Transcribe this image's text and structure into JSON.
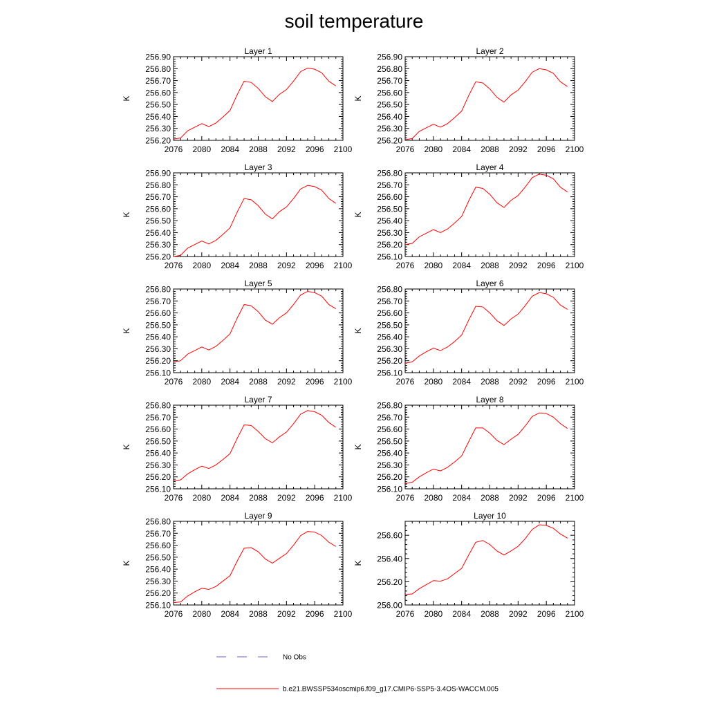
{
  "figure": {
    "title": "soil temperature",
    "legend": [
      {
        "label": "No Obs",
        "color": "#6666cc",
        "dash": true
      },
      {
        "label": "b.e21.BWSSP534oscmip6.f09_g17.CMIP6-SSP5-3.4OS-WACCM.005",
        "color": "#ff0000",
        "dash": false
      }
    ]
  },
  "chart_data": [
    {
      "type": "line",
      "title": "Layer 1",
      "xlabel": "",
      "ylabel": "K",
      "xlim": [
        2076,
        2100
      ],
      "ylim": [
        256.2,
        256.9
      ],
      "xticks": [
        "2076",
        "2080",
        "2084",
        "2088",
        "2092",
        "2096",
        "2100"
      ],
      "yticks": [
        "256.20",
        "256.30",
        "256.40",
        "256.50",
        "256.60",
        "256.70",
        "256.80",
        "256.90"
      ],
      "x": [
        2076,
        2077,
        2078,
        2079,
        2080,
        2081,
        2082,
        2083,
        2084,
        2085,
        2086,
        2087,
        2088,
        2089,
        2090,
        2091,
        2092,
        2093,
        2094,
        2095,
        2096,
        2097,
        2098,
        2099
      ],
      "series": [
        {
          "name": "b.e21.BWSSP534oscmip6.f09_g17.CMIP6-SSP5-3.4OS-WACCM.005",
          "values": [
            256.21,
            256.22,
            256.28,
            256.31,
            256.34,
            256.315,
            256.345,
            256.395,
            256.45,
            256.58,
            256.695,
            256.685,
            256.635,
            256.565,
            256.525,
            256.585,
            256.625,
            256.695,
            256.775,
            256.805,
            256.795,
            256.765,
            256.695,
            256.655
          ]
        }
      ]
    },
    {
      "type": "line",
      "title": "Layer 2",
      "xlabel": "",
      "ylabel": "K",
      "xlim": [
        2076,
        2100
      ],
      "ylim": [
        256.2,
        256.9
      ],
      "xticks": [
        "2076",
        "2080",
        "2084",
        "2088",
        "2092",
        "2096",
        "2100"
      ],
      "yticks": [
        "256.20",
        "256.30",
        "256.40",
        "256.50",
        "256.60",
        "256.70",
        "256.80",
        "256.90"
      ],
      "x": [
        2076,
        2077,
        2078,
        2079,
        2080,
        2081,
        2082,
        2083,
        2084,
        2085,
        2086,
        2087,
        2088,
        2089,
        2090,
        2091,
        2092,
        2093,
        2094,
        2095,
        2096,
        2097,
        2098,
        2099
      ],
      "series": [
        {
          "name": "b.e21.BWSSP534oscmip6.f09_g17.CMIP6-SSP5-3.4OS-WACCM.005",
          "values": [
            256.205,
            256.215,
            256.275,
            256.305,
            256.335,
            256.31,
            256.34,
            256.39,
            256.445,
            256.575,
            256.69,
            256.68,
            256.63,
            256.56,
            256.52,
            256.58,
            256.62,
            256.69,
            256.77,
            256.8,
            256.79,
            256.76,
            256.69,
            256.65
          ]
        }
      ]
    },
    {
      "type": "line",
      "title": "Layer 3",
      "xlabel": "",
      "ylabel": "K",
      "xlim": [
        2076,
        2100
      ],
      "ylim": [
        256.2,
        256.9
      ],
      "xticks": [
        "2076",
        "2080",
        "2084",
        "2088",
        "2092",
        "2096",
        "2100"
      ],
      "yticks": [
        "256.20",
        "256.30",
        "256.40",
        "256.50",
        "256.60",
        "256.70",
        "256.80",
        "256.90"
      ],
      "x": [
        2076,
        2077,
        2078,
        2079,
        2080,
        2081,
        2082,
        2083,
        2084,
        2085,
        2086,
        2087,
        2088,
        2089,
        2090,
        2091,
        2092,
        2093,
        2094,
        2095,
        2096,
        2097,
        2098,
        2099
      ],
      "series": [
        {
          "name": "b.e21.BWSSP534oscmip6.f09_g17.CMIP6-SSP5-3.4OS-WACCM.005",
          "values": [
            256.2,
            256.21,
            256.27,
            256.3,
            256.33,
            256.305,
            256.335,
            256.385,
            256.44,
            256.57,
            256.685,
            256.675,
            256.625,
            256.555,
            256.515,
            256.575,
            256.615,
            256.685,
            256.765,
            256.795,
            256.785,
            256.755,
            256.685,
            256.645
          ]
        }
      ]
    },
    {
      "type": "line",
      "title": "Layer 4",
      "xlabel": "",
      "ylabel": "K",
      "xlim": [
        2076,
        2100
      ],
      "ylim": [
        256.1,
        256.8
      ],
      "xticks": [
        "2076",
        "2080",
        "2084",
        "2088",
        "2092",
        "2096",
        "2100"
      ],
      "yticks": [
        "256.10",
        "256.20",
        "256.30",
        "256.40",
        "256.50",
        "256.60",
        "256.70",
        "256.80"
      ],
      "x": [
        2076,
        2077,
        2078,
        2079,
        2080,
        2081,
        2082,
        2083,
        2084,
        2085,
        2086,
        2087,
        2088,
        2089,
        2090,
        2091,
        2092,
        2093,
        2094,
        2095,
        2096,
        2097,
        2098,
        2099
      ],
      "series": [
        {
          "name": "b.e21.BWSSP534oscmip6.f09_g17.CMIP6-SSP5-3.4OS-WACCM.005",
          "values": [
            256.2,
            256.21,
            256.265,
            256.295,
            256.325,
            256.3,
            256.33,
            256.38,
            256.435,
            256.565,
            256.68,
            256.67,
            256.62,
            256.55,
            256.51,
            256.57,
            256.61,
            256.68,
            256.76,
            256.79,
            256.78,
            256.75,
            256.68,
            256.64
          ]
        }
      ]
    },
    {
      "type": "line",
      "title": "Layer 5",
      "xlabel": "",
      "ylabel": "K",
      "xlim": [
        2076,
        2100
      ],
      "ylim": [
        256.1,
        256.8
      ],
      "xticks": [
        "2076",
        "2080",
        "2084",
        "2088",
        "2092",
        "2096",
        "2100"
      ],
      "yticks": [
        "256.10",
        "256.20",
        "256.30",
        "256.40",
        "256.50",
        "256.60",
        "256.70",
        "256.80"
      ],
      "x": [
        2076,
        2077,
        2078,
        2079,
        2080,
        2081,
        2082,
        2083,
        2084,
        2085,
        2086,
        2087,
        2088,
        2089,
        2090,
        2091,
        2092,
        2093,
        2094,
        2095,
        2096,
        2097,
        2098,
        2099
      ],
      "series": [
        {
          "name": "b.e21.BWSSP534oscmip6.f09_g17.CMIP6-SSP5-3.4OS-WACCM.005",
          "values": [
            256.19,
            256.2,
            256.255,
            256.285,
            256.315,
            256.29,
            256.32,
            256.37,
            256.425,
            256.555,
            256.67,
            256.66,
            256.61,
            256.54,
            256.505,
            256.56,
            256.6,
            256.67,
            256.75,
            256.78,
            256.77,
            256.74,
            256.67,
            256.635
          ]
        }
      ]
    },
    {
      "type": "line",
      "title": "Layer 6",
      "xlabel": "",
      "ylabel": "K",
      "xlim": [
        2076,
        2100
      ],
      "ylim": [
        256.1,
        256.8
      ],
      "xticks": [
        "2076",
        "2080",
        "2084",
        "2088",
        "2092",
        "2096",
        "2100"
      ],
      "yticks": [
        "256.10",
        "256.20",
        "256.30",
        "256.40",
        "256.50",
        "256.60",
        "256.70",
        "256.80"
      ],
      "x": [
        2076,
        2077,
        2078,
        2079,
        2080,
        2081,
        2082,
        2083,
        2084,
        2085,
        2086,
        2087,
        2088,
        2089,
        2090,
        2091,
        2092,
        2093,
        2094,
        2095,
        2096,
        2097,
        2098,
        2099
      ],
      "series": [
        {
          "name": "b.e21.BWSSP534oscmip6.f09_g17.CMIP6-SSP5-3.4OS-WACCM.005",
          "values": [
            256.18,
            256.19,
            256.24,
            256.275,
            256.305,
            256.285,
            256.315,
            256.36,
            256.415,
            256.54,
            256.655,
            256.65,
            256.6,
            256.535,
            256.495,
            256.55,
            256.59,
            256.66,
            256.74,
            256.77,
            256.76,
            256.73,
            256.665,
            256.63
          ]
        }
      ]
    },
    {
      "type": "line",
      "title": "Layer 7",
      "xlabel": "",
      "ylabel": "K",
      "xlim": [
        2076,
        2100
      ],
      "ylim": [
        256.1,
        256.8
      ],
      "xticks": [
        "2076",
        "2080",
        "2084",
        "2088",
        "2092",
        "2096",
        "2100"
      ],
      "yticks": [
        "256.10",
        "256.20",
        "256.30",
        "256.40",
        "256.50",
        "256.60",
        "256.70",
        "256.80"
      ],
      "x": [
        2076,
        2077,
        2078,
        2079,
        2080,
        2081,
        2082,
        2083,
        2084,
        2085,
        2086,
        2087,
        2088,
        2089,
        2090,
        2091,
        2092,
        2093,
        2094,
        2095,
        2096,
        2097,
        2098,
        2099
      ],
      "series": [
        {
          "name": "b.e21.BWSSP534oscmip6.f09_g17.CMIP6-SSP5-3.4OS-WACCM.005",
          "values": [
            256.165,
            256.175,
            256.225,
            256.26,
            256.29,
            256.27,
            256.3,
            256.345,
            256.395,
            256.52,
            256.635,
            256.63,
            256.58,
            256.52,
            256.485,
            256.535,
            256.575,
            256.645,
            256.725,
            256.755,
            256.745,
            256.715,
            256.655,
            256.615
          ]
        }
      ]
    },
    {
      "type": "line",
      "title": "Layer 8",
      "xlabel": "",
      "ylabel": "K",
      "xlim": [
        2076,
        2100
      ],
      "ylim": [
        256.1,
        256.8
      ],
      "xticks": [
        "2076",
        "2080",
        "2084",
        "2088",
        "2092",
        "2096",
        "2100"
      ],
      "yticks": [
        "256.10",
        "256.20",
        "256.30",
        "256.40",
        "256.50",
        "256.60",
        "256.70",
        "256.80"
      ],
      "x": [
        2076,
        2077,
        2078,
        2079,
        2080,
        2081,
        2082,
        2083,
        2084,
        2085,
        2086,
        2087,
        2088,
        2089,
        2090,
        2091,
        2092,
        2093,
        2094,
        2095,
        2096,
        2097,
        2098,
        2099
      ],
      "series": [
        {
          "name": "b.e21.BWSSP534oscmip6.f09_g17.CMIP6-SSP5-3.4OS-WACCM.005",
          "values": [
            256.145,
            256.155,
            256.2,
            256.235,
            256.265,
            256.25,
            256.28,
            256.325,
            256.375,
            256.495,
            256.61,
            256.61,
            256.565,
            256.505,
            256.47,
            256.515,
            256.555,
            256.625,
            256.705,
            256.735,
            256.73,
            256.7,
            256.645,
            256.605
          ]
        }
      ]
    },
    {
      "type": "line",
      "title": "Layer 9",
      "xlabel": "",
      "ylabel": "K",
      "xlim": [
        2076,
        2100
      ],
      "ylim": [
        256.1,
        256.8
      ],
      "xticks": [
        "2076",
        "2080",
        "2084",
        "2088",
        "2092",
        "2096",
        "2100"
      ],
      "yticks": [
        "256.10",
        "256.20",
        "256.30",
        "256.40",
        "256.50",
        "256.60",
        "256.70",
        "256.80"
      ],
      "x": [
        2076,
        2077,
        2078,
        2079,
        2080,
        2081,
        2082,
        2083,
        2084,
        2085,
        2086,
        2087,
        2088,
        2089,
        2090,
        2091,
        2092,
        2093,
        2094,
        2095,
        2096,
        2097,
        2098,
        2099
      ],
      "series": [
        {
          "name": "b.e21.BWSSP534oscmip6.f09_g17.CMIP6-SSP5-3.4OS-WACCM.005",
          "values": [
            256.12,
            256.125,
            256.175,
            256.21,
            256.24,
            256.23,
            256.255,
            256.3,
            256.345,
            256.465,
            256.575,
            256.58,
            256.545,
            256.485,
            256.45,
            256.49,
            256.53,
            256.6,
            256.68,
            256.715,
            256.71,
            256.68,
            256.625,
            256.59
          ]
        }
      ]
    },
    {
      "type": "line",
      "title": "Layer 10",
      "xlabel": "",
      "ylabel": "K",
      "xlim": [
        2076,
        2100
      ],
      "ylim": [
        256.0,
        256.72
      ],
      "xticks": [
        "2076",
        "2080",
        "2084",
        "2088",
        "2092",
        "2096",
        "2100"
      ],
      "yticks": [
        "256.00",
        "256.20",
        "256.40",
        "256.60"
      ],
      "x": [
        2076,
        2077,
        2078,
        2079,
        2080,
        2081,
        2082,
        2083,
        2084,
        2085,
        2086,
        2087,
        2088,
        2089,
        2090,
        2091,
        2092,
        2093,
        2094,
        2095,
        2096,
        2097,
        2098,
        2099
      ],
      "series": [
        {
          "name": "b.e21.BWSSP534oscmip6.f09_g17.CMIP6-SSP5-3.4OS-WACCM.005",
          "values": [
            256.09,
            256.095,
            256.14,
            256.175,
            256.21,
            256.205,
            256.225,
            256.27,
            256.315,
            256.43,
            256.54,
            256.555,
            256.52,
            256.465,
            256.43,
            256.465,
            256.505,
            256.57,
            256.65,
            256.69,
            256.685,
            256.66,
            256.61,
            256.575
          ]
        }
      ]
    }
  ]
}
